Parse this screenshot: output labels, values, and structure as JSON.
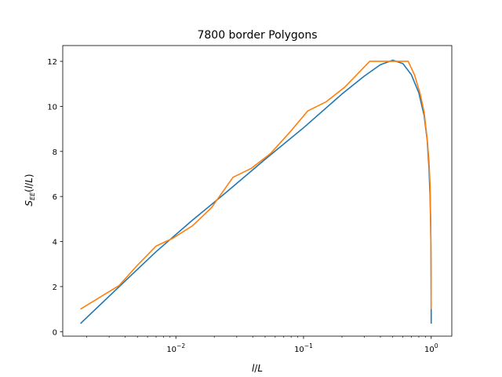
{
  "chart_data": {
    "type": "line",
    "title": "7800 border Polygons",
    "xlabel": {
      "var": "l",
      "sep": "/",
      "den": "L"
    },
    "ylabel": {
      "base": "S",
      "sub": "EE",
      "open": "(",
      "var": "l",
      "sep": "/",
      "den": "L",
      "close": ")"
    },
    "x_scale": "log",
    "xlim": [
      0.0013,
      1.45
    ],
    "ylim": [
      -0.2,
      12.7
    ],
    "x_ticks": [
      {
        "value": 0.01,
        "base": "10",
        "exp": "−2"
      },
      {
        "value": 0.1,
        "base": "10",
        "exp": "−1"
      },
      {
        "value": 1,
        "base": "10",
        "exp": "0"
      }
    ],
    "y_ticks": [
      {
        "value": 0,
        "label": "0"
      },
      {
        "value": 2,
        "label": "2"
      },
      {
        "value": 4,
        "label": "4"
      },
      {
        "value": 6,
        "label": "6"
      },
      {
        "value": 8,
        "label": "8"
      },
      {
        "value": 10,
        "label": "10"
      },
      {
        "value": 12,
        "label": "12"
      }
    ],
    "grid": false,
    "series": [
      {
        "color": "#1f77b4",
        "points": [
          [
            0.00179,
            0.36
          ],
          [
            0.0036,
            2.0
          ],
          [
            0.007,
            3.55
          ],
          [
            0.0135,
            4.95
          ],
          [
            0.025,
            6.2
          ],
          [
            0.05,
            7.65
          ],
          [
            0.1,
            9.05
          ],
          [
            0.2,
            10.55
          ],
          [
            0.3,
            11.35
          ],
          [
            0.4,
            11.85
          ],
          [
            0.5,
            12.05
          ],
          [
            0.6,
            11.9
          ],
          [
            0.7,
            11.4
          ],
          [
            0.8,
            10.6
          ],
          [
            0.88,
            9.6
          ],
          [
            0.93,
            8.5
          ],
          [
            0.96,
            7.3
          ],
          [
            0.98,
            6.0
          ],
          [
            0.99,
            4.8
          ],
          [
            0.995,
            3.7
          ],
          [
            0.998,
            2.5
          ],
          [
            0.9995,
            1.4
          ],
          [
            1.0,
            0.36
          ]
        ]
      },
      {
        "color": "#ff7f0e",
        "points": [
          [
            0.00179,
            1.0
          ],
          [
            0.0036,
            2.05
          ],
          [
            0.005,
            2.95
          ],
          [
            0.007,
            3.8
          ],
          [
            0.0095,
            4.15
          ],
          [
            0.0135,
            4.7
          ],
          [
            0.019,
            5.5
          ],
          [
            0.028,
            6.85
          ],
          [
            0.039,
            7.25
          ],
          [
            0.055,
            7.9
          ],
          [
            0.078,
            8.85
          ],
          [
            0.108,
            9.8
          ],
          [
            0.15,
            10.2
          ],
          [
            0.21,
            10.85
          ],
          [
            0.33,
            12.0
          ],
          [
            0.5,
            12.0
          ],
          [
            0.66,
            12.0
          ],
          [
            0.74,
            11.4
          ],
          [
            0.82,
            10.55
          ],
          [
            0.88,
            9.75
          ],
          [
            0.93,
            8.55
          ],
          [
            0.96,
            7.6
          ],
          [
            0.98,
            6.5
          ],
          [
            0.99,
            5.0
          ],
          [
            0.995,
            3.9
          ],
          [
            0.998,
            2.7
          ],
          [
            0.9995,
            1.6
          ],
          [
            1.0,
            1.0
          ]
        ]
      }
    ]
  }
}
